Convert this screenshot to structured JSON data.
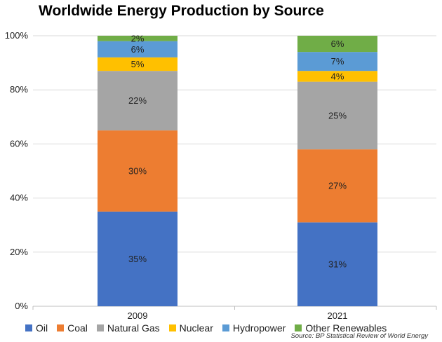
{
  "chart_data": {
    "type": "bar",
    "stacked": true,
    "title": "Worldwide Energy Production by Source",
    "source": "Source: BP Statistical Review of World Energy",
    "categories": [
      "2009",
      "2021"
    ],
    "ylim": [
      0,
      100
    ],
    "yticks": [
      "0%",
      "20%",
      "40%",
      "60%",
      "80%",
      "100%"
    ],
    "grid": true,
    "legend_position": "bottom",
    "series": [
      {
        "name": "Oil",
        "color": "#4472C4",
        "values": [
          35,
          31
        ],
        "labels": [
          "35%",
          "31%"
        ]
      },
      {
        "name": "Coal",
        "color": "#ED7D31",
        "values": [
          30,
          27
        ],
        "labels": [
          "30%",
          "27%"
        ]
      },
      {
        "name": "Natural Gas",
        "color": "#A5A5A5",
        "values": [
          22,
          25
        ],
        "labels": [
          "22%",
          "25%"
        ]
      },
      {
        "name": "Nuclear",
        "color": "#FFC000",
        "values": [
          5,
          4
        ],
        "labels": [
          "5%",
          "4%"
        ]
      },
      {
        "name": "Hydropower",
        "color": "#5B9BD5",
        "values": [
          6,
          7
        ],
        "labels": [
          "6%",
          "7%"
        ]
      },
      {
        "name": "Other Renewables",
        "color": "#70AD47",
        "values": [
          2,
          6
        ],
        "labels": [
          "2%",
          "6%"
        ]
      }
    ]
  }
}
